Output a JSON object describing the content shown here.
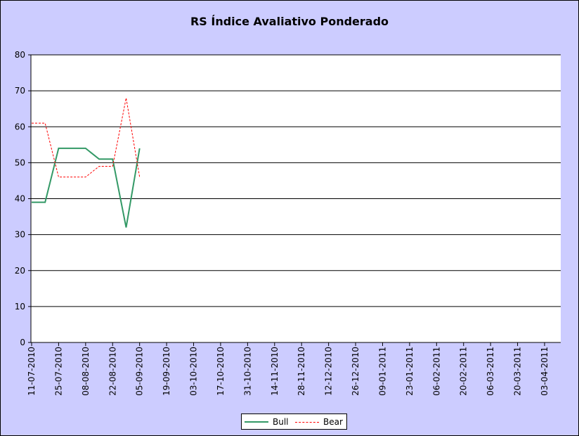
{
  "chart_data": {
    "type": "line",
    "title": "RS Índice Avaliativo Ponderado",
    "xlabel": "",
    "ylabel": "",
    "ylim": [
      0,
      80
    ],
    "yticks": [
      "0",
      "10",
      "20",
      "30",
      "40",
      "50",
      "60",
      "70",
      "80"
    ],
    "x_tick_labels": [
      "11-07-2010",
      "25-07-2010",
      "08-08-2010",
      "22-08-2010",
      "05-09-2010",
      "19-09-2010",
      "03-10-2010",
      "17-10-2010",
      "31-10-2010",
      "14-11-2010",
      "28-11-2010",
      "12-12-2010",
      "26-12-2010",
      "09-01-2011",
      "23-01-2011",
      "06-02-2011",
      "20-02-2011",
      "06-03-2011",
      "20-03-2011",
      "03-04-2011"
    ],
    "grid": true,
    "legend_position": "bottom",
    "series": [
      {
        "name": "Bull",
        "color": "#339966",
        "style": "solid",
        "points": [
          {
            "x": "11-07-2010",
            "y": 39
          },
          {
            "x": "18-07-2010",
            "y": 39
          },
          {
            "x": "25-07-2010",
            "y": 54
          },
          {
            "x": "01-08-2010",
            "y": 54
          },
          {
            "x": "08-08-2010",
            "y": 54
          },
          {
            "x": "15-08-2010",
            "y": 51
          },
          {
            "x": "22-08-2010",
            "y": 51
          },
          {
            "x": "29-08-2010",
            "y": 32
          },
          {
            "x": "05-09-2010",
            "y": 54
          }
        ]
      },
      {
        "name": "Bear",
        "color": "#ff0000",
        "style": "dashed",
        "points": [
          {
            "x": "11-07-2010",
            "y": 61
          },
          {
            "x": "18-07-2010",
            "y": 61
          },
          {
            "x": "25-07-2010",
            "y": 46
          },
          {
            "x": "01-08-2010",
            "y": 46
          },
          {
            "x": "08-08-2010",
            "y": 46
          },
          {
            "x": "15-08-2010",
            "y": 49
          },
          {
            "x": "22-08-2010",
            "y": 49
          },
          {
            "x": "29-08-2010",
            "y": 68
          },
          {
            "x": "05-09-2010",
            "y": 46
          }
        ]
      }
    ]
  },
  "colors": {
    "background": "#ccccff",
    "plot_area": "#ffffff",
    "gridline": "#000000"
  }
}
